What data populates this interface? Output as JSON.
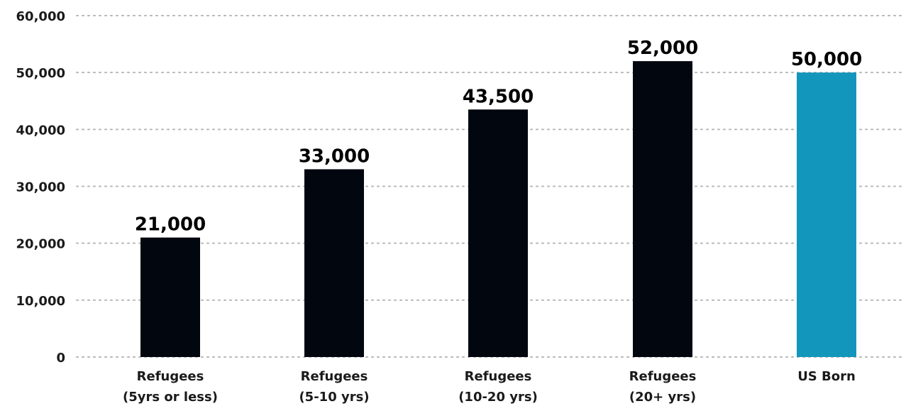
{
  "chart_data": {
    "type": "bar",
    "categories": [
      [
        "Refugees",
        "(5yrs or less)"
      ],
      [
        "Refugees",
        "(5-10 yrs)"
      ],
      [
        "Refugees",
        "(10-20 yrs)"
      ],
      [
        "Refugees",
        "(20+ yrs)"
      ],
      [
        "US Born"
      ]
    ],
    "values": [
      21000,
      33000,
      43500,
      52000,
      50000
    ],
    "value_labels": [
      "21,000",
      "33,000",
      "43,500",
      "52,000",
      "50,000"
    ],
    "bar_colors": [
      "#02060f",
      "#02060f",
      "#02060f",
      "#02060f",
      "#1396bb"
    ],
    "ylim": [
      0,
      60000
    ],
    "yticks": [
      0,
      10000,
      20000,
      30000,
      40000,
      50000,
      60000
    ],
    "ytick_labels": [
      "0",
      "10,000",
      "20,000",
      "30,000",
      "40,000",
      "50,000",
      "60,000"
    ],
    "grid": true,
    "legend": "none"
  }
}
